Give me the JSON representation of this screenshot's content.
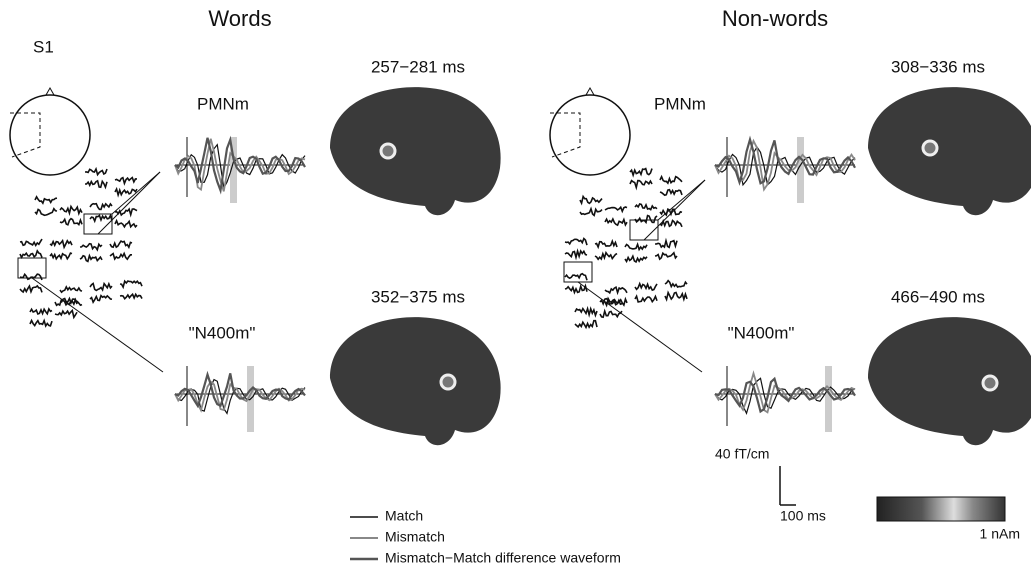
{
  "figure": {
    "subject": "S1",
    "conditions": [
      {
        "title": "Words",
        "panels": [
          {
            "component": "PMNm",
            "time_window": "257−281 ms"
          },
          {
            "component": "\"N400m\"",
            "time_window": "352−375 ms"
          }
        ]
      },
      {
        "title": "Non-words",
        "panels": [
          {
            "component": "PMNm",
            "time_window": "308−336 ms"
          },
          {
            "component": "\"N400m\"",
            "time_window": "466−490 ms"
          }
        ]
      }
    ],
    "scale_amplitude": "40 fT/cm",
    "scale_time": "100 ms",
    "colorbar_label": "1 nAm",
    "legend": [
      "Match",
      "Mismatch",
      "Mismatch−Match difference waveform"
    ]
  }
}
